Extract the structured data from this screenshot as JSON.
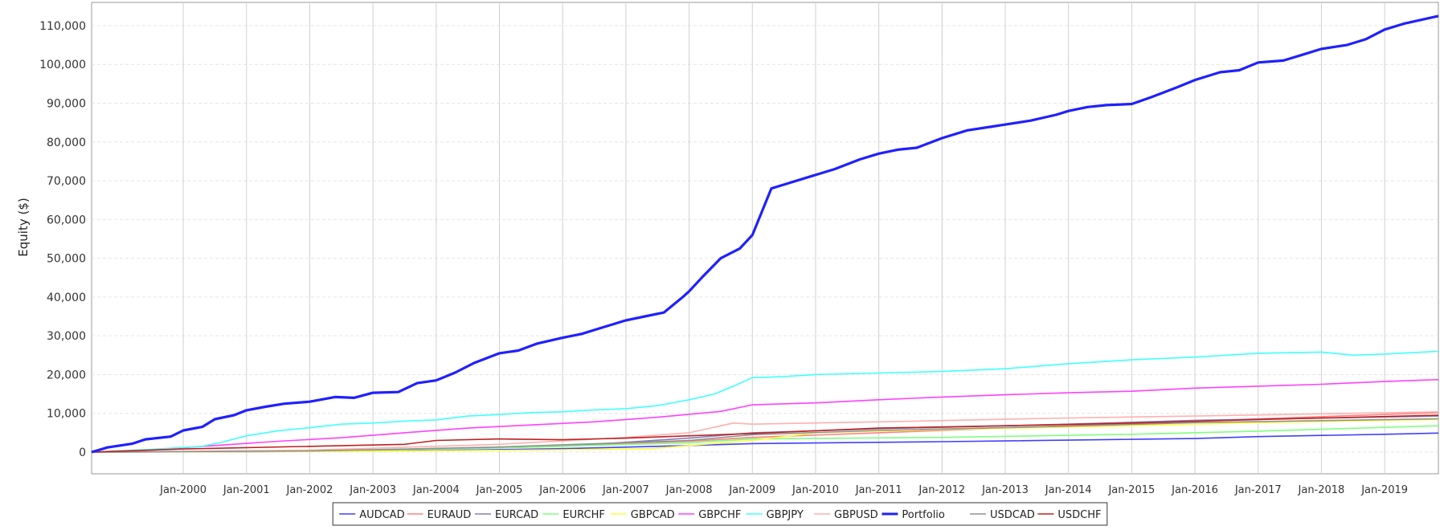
{
  "chart_data": {
    "type": "line",
    "title": "",
    "ylabel": "Equity ($)",
    "xlabel": "",
    "ylim": [
      0,
      116000
    ],
    "xlim": [
      1998.55,
      2019.85
    ],
    "yticks": [
      0,
      10000,
      20000,
      30000,
      40000,
      50000,
      60000,
      70000,
      80000,
      90000,
      100000,
      110000
    ],
    "ytick_labels": [
      "0",
      "10,000",
      "20,000",
      "30,000",
      "40,000",
      "50,000",
      "60,000",
      "70,000",
      "80,000",
      "90,000",
      "100,000",
      "110,000"
    ],
    "xticks": [
      2000,
      2001,
      2002,
      2003,
      2004,
      2005,
      2006,
      2007,
      2008,
      2009,
      2010,
      2011,
      2012,
      2013,
      2014,
      2015,
      2016,
      2017,
      2018,
      2019
    ],
    "xtick_labels": [
      "Jan-2000",
      "Jan-2001",
      "Jan-2002",
      "Jan-2003",
      "Jan-2004",
      "Jan-2005",
      "Jan-2006",
      "Jan-2007",
      "Jan-2008",
      "Jan-2009",
      "Jan-2010",
      "Jan-2011",
      "Jan-2012",
      "Jan-2013",
      "Jan-2014",
      "Jan-2015",
      "Jan-2016",
      "Jan-2017",
      "Jan-2018",
      "Jan-2019"
    ],
    "year_bands": [
      "1999",
      "2000",
      "2001",
      "2002",
      "2003",
      "2004",
      "2005",
      "2006",
      "2007",
      "2008",
      "2009",
      "2010",
      "2011",
      "2012",
      "2013",
      "2014",
      "2015",
      "2016",
      "2017",
      "2018",
      "2019"
    ],
    "grid": true,
    "legend_position": "bottom",
    "series": [
      {
        "name": "AUDCAD",
        "color": "#4040ff",
        "points": [
          [
            1998.55,
            0
          ],
          [
            2001,
            100
          ],
          [
            2004,
            400
          ],
          [
            2006,
            900
          ],
          [
            2008,
            1700
          ],
          [
            2009,
            2200
          ],
          [
            2012,
            2700
          ],
          [
            2015,
            3300
          ],
          [
            2016,
            3500
          ],
          [
            2017,
            4000
          ],
          [
            2019,
            4600
          ],
          [
            2019.85,
            4900
          ]
        ]
      },
      {
        "name": "EURAUD",
        "color": "#ff8080",
        "points": [
          [
            1998.55,
            0
          ],
          [
            2002,
            200
          ],
          [
            2005,
            1200
          ],
          [
            2008,
            2800
          ],
          [
            2009,
            3800
          ],
          [
            2011,
            5000
          ],
          [
            2014,
            6800
          ],
          [
            2017,
            8600
          ],
          [
            2019.85,
            10200
          ]
        ]
      },
      {
        "name": "EURCAD",
        "color": "#8080c0",
        "points": [
          [
            1998.55,
            0
          ],
          [
            2003,
            400
          ],
          [
            2006,
            1500
          ],
          [
            2008,
            3600
          ],
          [
            2009,
            5000
          ],
          [
            2011,
            6000
          ],
          [
            2014,
            7200
          ],
          [
            2016,
            8200
          ],
          [
            2019.85,
            9300
          ]
        ]
      },
      {
        "name": "EURCHF",
        "color": "#80ff80",
        "points": [
          [
            1998.55,
            0
          ],
          [
            2002,
            300
          ],
          [
            2005,
            1100
          ],
          [
            2008,
            2400
          ],
          [
            2009,
            3400
          ],
          [
            2012,
            3800
          ],
          [
            2015,
            4600
          ],
          [
            2017,
            5400
          ],
          [
            2019.85,
            6800
          ]
        ]
      },
      {
        "name": "GBPCAD",
        "color": "#ffff40",
        "points": [
          [
            1998.55,
            0
          ],
          [
            2003,
            200
          ],
          [
            2006,
            600
          ],
          [
            2007.4,
            900
          ],
          [
            2008,
            1700
          ],
          [
            2009,
            3000
          ],
          [
            2010,
            5000
          ],
          [
            2012,
            5800
          ],
          [
            2015,
            6800
          ],
          [
            2017,
            7600
          ],
          [
            2019.85,
            8400
          ]
        ]
      },
      {
        "name": "GBPCHF",
        "color": "#ff40ff",
        "points": [
          [
            1998.55,
            0
          ],
          [
            1999.5,
            600
          ],
          [
            2000.5,
            1700
          ],
          [
            2001.5,
            2800
          ],
          [
            2002.5,
            3700
          ],
          [
            2003.5,
            5000
          ],
          [
            2004.5,
            6200
          ],
          [
            2005.5,
            7000
          ],
          [
            2006.5,
            7800
          ],
          [
            2007.5,
            9000
          ],
          [
            2008.5,
            10500
          ],
          [
            2009,
            12200
          ],
          [
            2010,
            12700
          ],
          [
            2011,
            13500
          ],
          [
            2012,
            14200
          ],
          [
            2013,
            14800
          ],
          [
            2014,
            15300
          ],
          [
            2015,
            15700
          ],
          [
            2016,
            16500
          ],
          [
            2017,
            17000
          ],
          [
            2018,
            17500
          ],
          [
            2019,
            18200
          ],
          [
            2019.85,
            18700
          ]
        ]
      },
      {
        "name": "GBPJPY",
        "color": "#40ffff",
        "points": [
          [
            1998.55,
            0
          ],
          [
            1999.5,
            700
          ],
          [
            2000.3,
            1500
          ],
          [
            2000.6,
            2500
          ],
          [
            2001,
            4200
          ],
          [
            2001.5,
            5500
          ],
          [
            2002,
            6300
          ],
          [
            2002.5,
            7200
          ],
          [
            2003,
            7500
          ],
          [
            2003.5,
            8000
          ],
          [
            2004,
            8300
          ],
          [
            2004.5,
            9300
          ],
          [
            2005,
            9700
          ],
          [
            2005.5,
            10200
          ],
          [
            2006,
            10400
          ],
          [
            2006.5,
            10900
          ],
          [
            2007,
            11200
          ],
          [
            2007.5,
            12000
          ],
          [
            2008,
            13500
          ],
          [
            2008.4,
            15000
          ],
          [
            2008.7,
            17000
          ],
          [
            2009,
            19200
          ],
          [
            2009.5,
            19500
          ],
          [
            2010,
            20000
          ],
          [
            2011,
            20400
          ],
          [
            2012,
            20800
          ],
          [
            2013,
            21500
          ],
          [
            2014,
            22800
          ],
          [
            2015,
            23800
          ],
          [
            2016,
            24500
          ],
          [
            2017,
            25500
          ],
          [
            2018,
            25800
          ],
          [
            2018.5,
            25000
          ],
          [
            2019,
            25300
          ],
          [
            2019.85,
            26000
          ]
        ]
      },
      {
        "name": "GBPUSD",
        "color": "#ffb0b0",
        "points": [
          [
            1998.55,
            0
          ],
          [
            2002,
            500
          ],
          [
            2005,
            2000
          ],
          [
            2007,
            3800
          ],
          [
            2008,
            5000
          ],
          [
            2008.7,
            7500
          ],
          [
            2009,
            7200
          ],
          [
            2011,
            7800
          ],
          [
            2014,
            8800
          ],
          [
            2016,
            9300
          ],
          [
            2019.85,
            10400
          ]
        ]
      },
      {
        "name": "Portfolio",
        "color": "#2020ff",
        "width": 3.2,
        "points": [
          [
            1998.55,
            0
          ],
          [
            1998.8,
            1200
          ],
          [
            1999.2,
            2200
          ],
          [
            1999.4,
            3300
          ],
          [
            1999.8,
            4000
          ],
          [
            2000,
            5600
          ],
          [
            2000.3,
            6500
          ],
          [
            2000.5,
            8500
          ],
          [
            2000.8,
            9500
          ],
          [
            2001,
            10800
          ],
          [
            2001.3,
            11700
          ],
          [
            2001.6,
            12500
          ],
          [
            2002,
            13000
          ],
          [
            2002.4,
            14200
          ],
          [
            2002.7,
            14000
          ],
          [
            2003,
            15300
          ],
          [
            2003.4,
            15500
          ],
          [
            2003.7,
            17800
          ],
          [
            2004,
            18500
          ],
          [
            2004.3,
            20500
          ],
          [
            2004.6,
            23000
          ],
          [
            2005,
            25500
          ],
          [
            2005.3,
            26200
          ],
          [
            2005.6,
            28000
          ],
          [
            2006,
            29500
          ],
          [
            2006.3,
            30500
          ],
          [
            2006.6,
            32000
          ],
          [
            2007,
            34000
          ],
          [
            2007.3,
            35000
          ],
          [
            2007.6,
            36000
          ],
          [
            2007.9,
            40000
          ],
          [
            2008,
            41500
          ],
          [
            2008.2,
            45000
          ],
          [
            2008.5,
            50000
          ],
          [
            2008.8,
            52500
          ],
          [
            2009,
            56000
          ],
          [
            2009.15,
            62000
          ],
          [
            2009.3,
            68000
          ],
          [
            2009.5,
            69000
          ],
          [
            2009.9,
            71000
          ],
          [
            2010.3,
            73000
          ],
          [
            2010.7,
            75500
          ],
          [
            2011,
            77000
          ],
          [
            2011.3,
            78000
          ],
          [
            2011.6,
            78500
          ],
          [
            2012,
            81000
          ],
          [
            2012.4,
            83000
          ],
          [
            2012.8,
            84000
          ],
          [
            2013,
            84500
          ],
          [
            2013.4,
            85500
          ],
          [
            2013.8,
            87000
          ],
          [
            2014,
            88000
          ],
          [
            2014.3,
            89000
          ],
          [
            2014.6,
            89500
          ],
          [
            2015,
            89800
          ],
          [
            2015.3,
            91500
          ],
          [
            2015.7,
            94000
          ],
          [
            2016,
            96000
          ],
          [
            2016.4,
            98000
          ],
          [
            2016.7,
            98500
          ],
          [
            2017,
            100500
          ],
          [
            2017.4,
            101000
          ],
          [
            2017.7,
            102500
          ],
          [
            2018,
            104000
          ],
          [
            2018.4,
            105000
          ],
          [
            2018.7,
            106500
          ],
          [
            2019,
            109000
          ],
          [
            2019.3,
            110500
          ],
          [
            2019.85,
            112500
          ]
        ]
      },
      {
        "name": "USDCAD",
        "color": "#909090",
        "points": [
          [
            1998.55,
            0
          ],
          [
            2002,
            300
          ],
          [
            2005,
            1300
          ],
          [
            2008,
            3000
          ],
          [
            2009,
            4500
          ],
          [
            2011,
            5600
          ],
          [
            2014,
            6700
          ],
          [
            2016,
            7600
          ],
          [
            2019.85,
            8600
          ]
        ]
      },
      {
        "name": "USDCHF",
        "color": "#c02020",
        "points": [
          [
            1998.55,
            0
          ],
          [
            2000,
            800
          ],
          [
            2002,
            1500
          ],
          [
            2003.5,
            2000
          ],
          [
            2004,
            3000
          ],
          [
            2005,
            3400
          ],
          [
            2006,
            3200
          ],
          [
            2007,
            3600
          ],
          [
            2008,
            4200
          ],
          [
            2009,
            4800
          ],
          [
            2011,
            6200
          ],
          [
            2013,
            6800
          ],
          [
            2015,
            7500
          ],
          [
            2017,
            8400
          ],
          [
            2019.85,
            9500
          ]
        ]
      }
    ]
  }
}
